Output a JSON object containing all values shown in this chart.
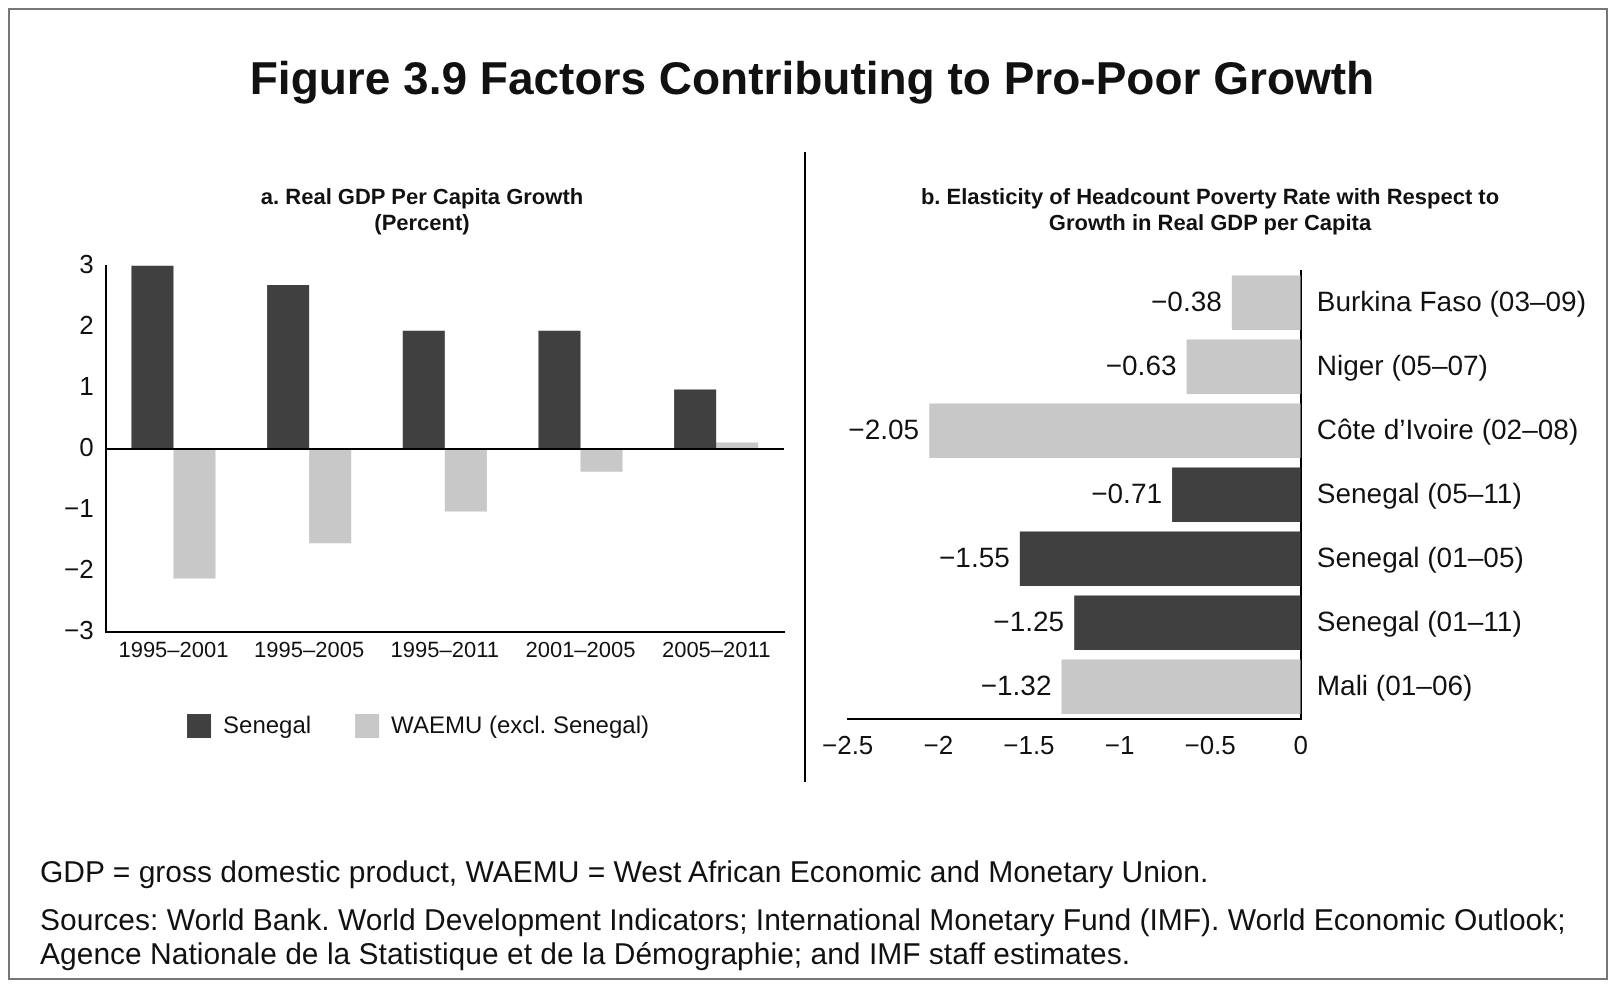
{
  "chart_data": [
    {
      "type": "bar",
      "title": "Figure 3.9  Factors Contributing to Pro-Poor Growth",
      "subtitle": "a. Real GDP Per Capita Growth (Percent)",
      "categories": [
        "1995–2001",
        "1995–2005",
        "1995–2011",
        "2001–2005",
        "2005–2011"
      ],
      "series": [
        {
          "name": "Senegal",
          "color": "#404040",
          "values": [
            3.0,
            2.68,
            1.93,
            1.93,
            0.97
          ]
        },
        {
          "name": "WAEMU (excl. Senegal)",
          "color": "#c8c8c8",
          "values": [
            -2.13,
            -1.55,
            -1.03,
            -0.38,
            0.1
          ]
        }
      ],
      "ylim": [
        -3,
        3
      ],
      "yticks": [
        -3,
        -2,
        -1,
        0,
        1,
        2,
        3
      ],
      "legend": "bottom"
    },
    {
      "type": "bar",
      "orientation": "horizontal",
      "title": "b. Elasticity of Headcount Poverty Rate with Respect to Growth in Real GDP per Capita",
      "categories": [
        "Burkina Faso (03–09)",
        "Niger (05–07)",
        "Côte d’Ivoire (02–08)",
        "Senegal (05–11)",
        "Senegal (01–05)",
        "Senegal (01–11)",
        "Mali (01–06)"
      ],
      "values": [
        -0.38,
        -0.63,
        -2.05,
        -0.71,
        -1.55,
        -1.25,
        -1.32
      ],
      "colors": [
        "#c8c8c8",
        "#c8c8c8",
        "#c8c8c8",
        "#404040",
        "#404040",
        "#404040",
        "#c8c8c8"
      ],
      "value_labels": [
        "−0.38",
        "−0.63",
        "−2.05",
        "−0.71",
        "−1.55",
        "−1.25",
        "−1.32"
      ],
      "xlim": [
        -2.5,
        0
      ],
      "xticks": [
        -2.5,
        -2,
        -1.5,
        -1,
        -0.5,
        0
      ],
      "annotations": [
        "GDP = gross domestic product, WAEMU = West African Economic and Monetary Union.",
        "Sources: World Bank. World Development Indicators; International Monetary Fund (IMF). World Economic Outlook; Agence Nationale de la Statistique et de la Démographie; and IMF staff estimates."
      ]
    }
  ]
}
